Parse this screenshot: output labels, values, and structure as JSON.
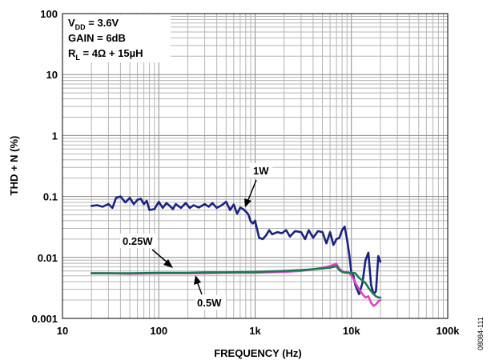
{
  "chart_data": {
    "type": "line",
    "xlabel": "FREQUENCY (Hz)",
    "ylabel": "THD + N (%)",
    "x_scale": "log",
    "y_scale": "log",
    "xlim": [
      10,
      100000
    ],
    "ylim": [
      0.001,
      100
    ],
    "x_ticks": [
      "10",
      "100",
      "1k",
      "10k",
      "100k"
    ],
    "y_ticks": [
      "0.001",
      "0.01",
      "0.1",
      "1",
      "10",
      "100"
    ],
    "grid": true,
    "conditions": {
      "vdd_base": "V",
      "vdd_sub": "DD",
      "vdd_value": " = 3.6V",
      "gain": "GAIN = 6dB",
      "rl_base": "R",
      "rl_sub": "L",
      "rl_value": " = 4Ω + 15µH"
    },
    "annotations": [
      {
        "label": "1W",
        "series": "1W"
      },
      {
        "label": "0.25W",
        "series": "0.25W"
      },
      {
        "label": "0.5W",
        "series": "0.5W"
      }
    ],
    "figure_id": "08084-111",
    "series": [
      {
        "id": "1W",
        "color": "#1a237e",
        "x": [
          20,
          23,
          26,
          30,
          33,
          36,
          40,
          45,
          50,
          55,
          60,
          65,
          70,
          75,
          80,
          90,
          100,
          110,
          120,
          130,
          140,
          150,
          170,
          190,
          210,
          230,
          260,
          300,
          330,
          360,
          400,
          450,
          500,
          550,
          600,
          650,
          700,
          750,
          800,
          850,
          900,
          950,
          1000,
          1100,
          1200,
          1300,
          1400,
          1500,
          1700,
          1900,
          2100,
          2300,
          2600,
          3000,
          3300,
          3600,
          4000,
          4500,
          5000,
          5500,
          6000,
          6500,
          7000,
          7500,
          8000,
          8500,
          9000,
          9500,
          10000,
          10500,
          11000,
          12000,
          13000,
          14000,
          15000,
          16000,
          17000,
          18000,
          19000,
          20000
        ],
        "y": [
          0.07,
          0.072,
          0.068,
          0.075,
          0.065,
          0.095,
          0.1,
          0.08,
          0.095,
          0.075,
          0.088,
          0.092,
          0.075,
          0.085,
          0.06,
          0.062,
          0.082,
          0.065,
          0.078,
          0.07,
          0.062,
          0.075,
          0.065,
          0.078,
          0.065,
          0.072,
          0.066,
          0.075,
          0.068,
          0.078,
          0.065,
          0.072,
          0.082,
          0.06,
          0.074,
          0.052,
          0.066,
          0.062,
          0.057,
          0.051,
          0.039,
          0.036,
          0.04,
          0.021,
          0.02,
          0.023,
          0.028,
          0.024,
          0.026,
          0.025,
          0.028,
          0.022,
          0.027,
          0.026,
          0.02,
          0.028,
          0.021,
          0.027,
          0.026,
          0.017,
          0.026,
          0.016,
          0.02,
          0.021,
          0.028,
          0.032,
          0.02,
          0.011,
          0.0055,
          0.005,
          0.0035,
          0.0025,
          0.0038,
          0.009,
          0.012,
          0.0035,
          0.0025,
          0.0028,
          0.0105,
          0.0085
        ]
      },
      {
        "id": "0.5W",
        "color": "#e040c8",
        "x": [
          20,
          30,
          50,
          100,
          200,
          300,
          500,
          1000,
          2000,
          3000,
          4000,
          5000,
          6000,
          6500,
          7000,
          7500,
          8000,
          8500,
          9000,
          9500,
          10000,
          10500,
          11000,
          12000,
          13000,
          14000,
          15000,
          16000,
          17000,
          18000,
          19000,
          20000
        ],
        "y": [
          0.0055,
          0.0055,
          0.0054,
          0.0055,
          0.0055,
          0.0055,
          0.0056,
          0.0056,
          0.0058,
          0.006,
          0.0064,
          0.0068,
          0.0072,
          0.0076,
          0.0078,
          0.0065,
          0.006,
          0.0056,
          0.0058,
          0.0056,
          0.005,
          0.0045,
          0.0038,
          0.003,
          0.0025,
          0.0022,
          0.0023,
          0.0018,
          0.0016,
          0.0017,
          0.0019,
          0.002
        ]
      },
      {
        "id": "0.25W",
        "color": "#1b7a4f",
        "x": [
          20,
          30,
          50,
          100,
          200,
          300,
          500,
          1000,
          2000,
          3000,
          4000,
          5000,
          6000,
          6500,
          7000,
          7500,
          8000,
          9000,
          10000,
          11000,
          12000,
          13000,
          14000,
          15000,
          16000,
          17000,
          18000,
          19000,
          20000
        ],
        "y": [
          0.0055,
          0.0055,
          0.0055,
          0.0056,
          0.0056,
          0.0057,
          0.0057,
          0.0058,
          0.006,
          0.0062,
          0.0064,
          0.0066,
          0.0068,
          0.007,
          0.0072,
          0.0062,
          0.0058,
          0.0056,
          0.0056,
          0.0055,
          0.0046,
          0.0042,
          0.0038,
          0.0032,
          0.0028,
          0.0025,
          0.0023,
          0.0022,
          0.0022
        ]
      }
    ]
  }
}
